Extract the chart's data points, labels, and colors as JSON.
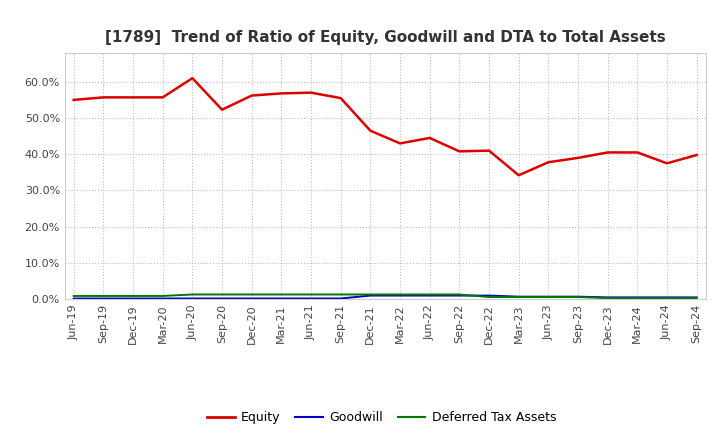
{
  "title": "[1789]  Trend of Ratio of Equity, Goodwill and DTA to Total Assets",
  "x_labels": [
    "Jun-19",
    "Sep-19",
    "Dec-19",
    "Mar-20",
    "Jun-20",
    "Sep-20",
    "Dec-20",
    "Mar-21",
    "Jun-21",
    "Sep-21",
    "Dec-21",
    "Mar-22",
    "Jun-22",
    "Sep-22",
    "Dec-22",
    "Mar-23",
    "Jun-23",
    "Sep-23",
    "Dec-23",
    "Mar-24",
    "Jun-24",
    "Sep-24"
  ],
  "equity": [
    0.55,
    0.557,
    0.557,
    0.557,
    0.61,
    0.523,
    0.562,
    0.568,
    0.57,
    0.555,
    0.465,
    0.43,
    0.445,
    0.408,
    0.41,
    0.342,
    0.378,
    0.39,
    0.405,
    0.405,
    0.375,
    0.398
  ],
  "goodwill": [
    0.002,
    0.002,
    0.002,
    0.002,
    0.002,
    0.002,
    0.002,
    0.002,
    0.002,
    0.002,
    0.01,
    0.01,
    0.01,
    0.01,
    0.01,
    0.007,
    0.007,
    0.007,
    0.005,
    0.005,
    0.005,
    0.005
  ],
  "dta": [
    0.009,
    0.009,
    0.009,
    0.009,
    0.013,
    0.013,
    0.013,
    0.013,
    0.013,
    0.013,
    0.013,
    0.013,
    0.013,
    0.013,
    0.006,
    0.006,
    0.006,
    0.006,
    0.003,
    0.003,
    0.003,
    0.003
  ],
  "equity_color": "#dd0000",
  "goodwill_color": "#0000cc",
  "dta_color": "#007700",
  "bg_color": "#ffffff",
  "plot_bg_color": "#ffffff",
  "grid_color": "#bbbbbb",
  "ylim": [
    0.0,
    0.68
  ],
  "yticks": [
    0.0,
    0.1,
    0.2,
    0.3,
    0.4,
    0.5,
    0.6
  ],
  "title_fontsize": 11,
  "tick_fontsize": 8,
  "legend_labels": [
    "Equity",
    "Goodwill",
    "Deferred Tax Assets"
  ]
}
